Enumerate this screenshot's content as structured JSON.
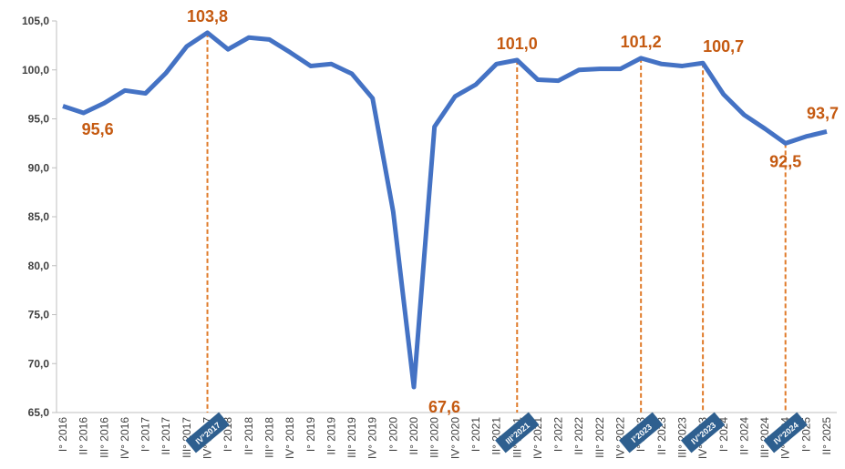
{
  "chart_data": {
    "type": "line",
    "categories": [
      "I° 2016",
      "II° 2016",
      "III° 2016",
      "IV° 2016",
      "I° 2017",
      "II° 2017",
      "III° 2017",
      "IV° 2017",
      "I° 2018",
      "II° 2018",
      "III° 2018",
      "IV° 2018",
      "I° 2019",
      "II° 2019",
      "III° 2019",
      "IV° 2019",
      "I° 2020",
      "II° 2020",
      "III° 2020",
      "IV° 2020",
      "I° 2021",
      "II° 2021",
      "III° 2021",
      "IV° 2021",
      "I° 2022",
      "II° 2022",
      "III° 2022",
      "IV° 2022",
      "I° 2023",
      "II° 2023",
      "III° 2023",
      "IV° 2023",
      "I° 2024",
      "II° 2024",
      "III° 2024",
      "IV° 2024",
      "I° 2025",
      "II° 2025"
    ],
    "values": [
      96.3,
      95.6,
      96.6,
      97.9,
      97.6,
      99.7,
      102.4,
      103.8,
      102.1,
      103.3,
      103.1,
      101.8,
      100.4,
      100.6,
      99.6,
      97.1,
      85.5,
      67.6,
      94.2,
      97.3,
      98.5,
      100.6,
      101.0,
      99.0,
      98.9,
      100.0,
      100.1,
      100.1,
      101.2,
      100.6,
      100.4,
      100.7,
      97.5,
      95.4,
      94.0,
      92.5,
      93.2,
      93.7
    ],
    "value_labels": [
      null,
      "95,6",
      null,
      null,
      null,
      null,
      null,
      "103,8",
      null,
      null,
      null,
      null,
      null,
      null,
      null,
      null,
      null,
      "67,6",
      null,
      null,
      null,
      null,
      "101,0",
      null,
      null,
      null,
      null,
      null,
      "101,2",
      null,
      null,
      "100,7",
      null,
      null,
      null,
      "92,5",
      null,
      "93,7"
    ],
    "highlight_labels": [
      null,
      null,
      null,
      null,
      null,
      null,
      null,
      "IV°2017",
      null,
      null,
      null,
      null,
      null,
      null,
      null,
      null,
      null,
      null,
      null,
      null,
      null,
      null,
      "III°2021",
      null,
      null,
      null,
      null,
      null,
      "I°2023",
      null,
      null,
      "IV°2023",
      null,
      null,
      null,
      "IV°2024",
      null,
      null
    ],
    "color": "#4472c4",
    "label_color": "#c55a11",
    "highlight_color": "#2e5f8f",
    "ylim": [
      65,
      105
    ],
    "yticks": [
      {
        "value": 65,
        "label": "65,0"
      },
      {
        "value": 70,
        "label": "70,0"
      },
      {
        "value": 75,
        "label": "75,0"
      },
      {
        "value": 80,
        "label": "80,0"
      },
      {
        "value": 85,
        "label": "85,0"
      },
      {
        "value": 90,
        "label": "90,0"
      },
      {
        "value": 95,
        "label": "95,0"
      },
      {
        "value": 100,
        "label": "100,0"
      },
      {
        "value": 105,
        "label": "105,0"
      }
    ],
    "grid": false
  }
}
